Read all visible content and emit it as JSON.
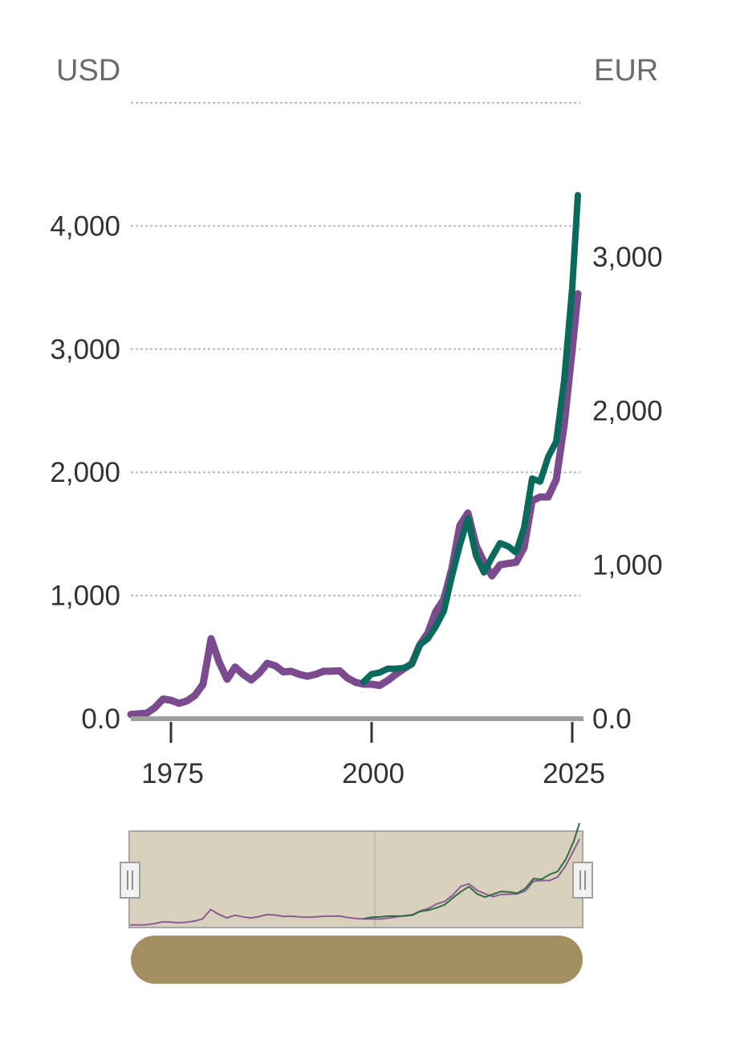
{
  "labels": {
    "left_unit": "USD",
    "right_unit": "EUR"
  },
  "chart_data": {
    "type": "line",
    "y_axis_left": {
      "label": "USD",
      "ticks": [
        "0.0",
        "1,000",
        "2,000",
        "3,000",
        "4,000"
      ],
      "ylim": [
        0,
        5000
      ]
    },
    "y_axis_right": {
      "label": "EUR",
      "ticks": [
        "0.0",
        "1,000",
        "2,000",
        "3,000"
      ],
      "ylim": [
        0,
        4000
      ]
    },
    "x_axis": {
      "ticks": [
        "1975",
        "2000",
        "2025"
      ],
      "xlim": [
        1970,
        2026
      ]
    },
    "series": [
      {
        "color": "#7b4a8f",
        "axis": "left",
        "points": [
          [
            1970,
            35
          ],
          [
            1972,
            45
          ],
          [
            1973,
            90
          ],
          [
            1974,
            160
          ],
          [
            1975,
            150
          ],
          [
            1976,
            125
          ],
          [
            1977,
            145
          ],
          [
            1978,
            190
          ],
          [
            1979,
            280
          ],
          [
            1980,
            650
          ],
          [
            1981,
            460
          ],
          [
            1982,
            320
          ],
          [
            1983,
            420
          ],
          [
            1984,
            360
          ],
          [
            1985,
            315
          ],
          [
            1986,
            370
          ],
          [
            1987,
            450
          ],
          [
            1988,
            430
          ],
          [
            1989,
            380
          ],
          [
            1990,
            385
          ],
          [
            1991,
            360
          ],
          [
            1992,
            345
          ],
          [
            1993,
            360
          ],
          [
            1994,
            385
          ],
          [
            1995,
            385
          ],
          [
            1996,
            390
          ],
          [
            1997,
            330
          ],
          [
            1998,
            295
          ],
          [
            1999,
            280
          ],
          [
            2000,
            280
          ],
          [
            2001,
            270
          ],
          [
            2002,
            310
          ],
          [
            2003,
            360
          ],
          [
            2004,
            405
          ],
          [
            2005,
            445
          ],
          [
            2006,
            600
          ],
          [
            2007,
            695
          ],
          [
            2008,
            870
          ],
          [
            2009,
            970
          ],
          [
            2010,
            1220
          ],
          [
            2011,
            1570
          ],
          [
            2012,
            1670
          ],
          [
            2013,
            1410
          ],
          [
            2014,
            1270
          ],
          [
            2015,
            1160
          ],
          [
            2016,
            1250
          ],
          [
            2017,
            1260
          ],
          [
            2018,
            1270
          ],
          [
            2019,
            1390
          ],
          [
            2020,
            1770
          ],
          [
            2021,
            1800
          ],
          [
            2022,
            1800
          ],
          [
            2023,
            1940
          ],
          [
            2024,
            2390
          ],
          [
            2025,
            3000
          ],
          [
            2025.7,
            3450
          ]
        ]
      },
      {
        "color": "#0a6b5c",
        "axis": "right",
        "points": [
          [
            1999,
            240
          ],
          [
            2000,
            290
          ],
          [
            2001,
            300
          ],
          [
            2002,
            325
          ],
          [
            2003,
            325
          ],
          [
            2004,
            330
          ],
          [
            2005,
            355
          ],
          [
            2006,
            480
          ],
          [
            2007,
            520
          ],
          [
            2008,
            600
          ],
          [
            2009,
            700
          ],
          [
            2010,
            925
          ],
          [
            2011,
            1130
          ],
          [
            2012,
            1300
          ],
          [
            2013,
            1060
          ],
          [
            2014,
            950
          ],
          [
            2015,
            1050
          ],
          [
            2016,
            1140
          ],
          [
            2017,
            1120
          ],
          [
            2018,
            1080
          ],
          [
            2019,
            1240
          ],
          [
            2020,
            1560
          ],
          [
            2021,
            1540
          ],
          [
            2022,
            1700
          ],
          [
            2023,
            1800
          ],
          [
            2024,
            2200
          ],
          [
            2025,
            2800
          ],
          [
            2025.7,
            3400
          ]
        ]
      }
    ],
    "navigator": {
      "window": [
        1970,
        2026
      ]
    }
  }
}
